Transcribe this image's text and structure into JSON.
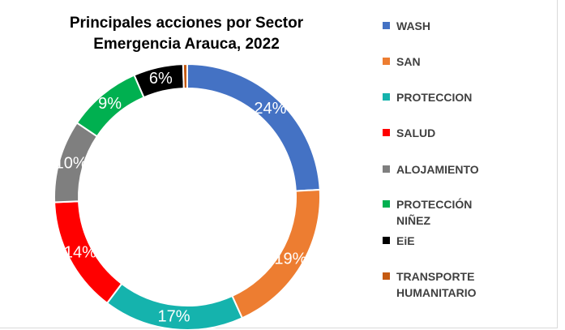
{
  "chart_data": {
    "type": "donut",
    "title": "Principales acciones por Sector Emergencia Arauca, 2022",
    "categories": [
      "WASH",
      "SAN",
      "PROTECCION",
      "SALUD",
      "ALOJAMIENTO",
      "PROTECCIÓN NIÑEZ",
      "EiE",
      "TRANSPORTE HUMANITARIO"
    ],
    "values": [
      24,
      19,
      17,
      14,
      10,
      9,
      6,
      0.5
    ],
    "value_labels": [
      "24%",
      "19%",
      "17%",
      "14%",
      "10%",
      "9%",
      "6%",
      null
    ],
    "colors": [
      "#4472c4",
      "#ed7d31",
      "#15b3ad",
      "#ff0000",
      "#7f7f7f",
      "#00b050",
      "#000000",
      "#c55a11"
    ],
    "legend": "right"
  }
}
